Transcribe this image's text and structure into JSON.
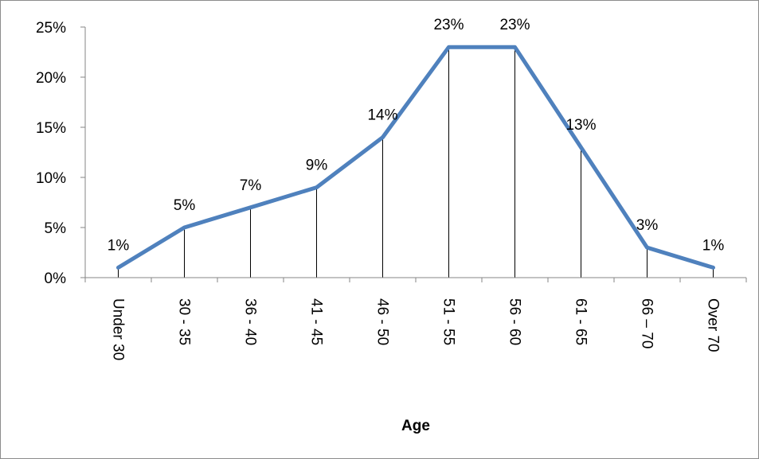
{
  "chart_data": {
    "type": "line",
    "title": "",
    "xlabel": "Age",
    "ylabel": "",
    "ylim": [
      0,
      25
    ],
    "y_tick_values": [
      0,
      5,
      10,
      15,
      20,
      25
    ],
    "y_tick_labels": [
      "0%",
      "5%",
      "10%",
      "15%",
      "20%",
      "25%"
    ],
    "categories": [
      "Under 30",
      "30 - 35",
      "36 - 40",
      "41 - 45",
      "46 - 50",
      "51 - 55",
      "56 - 60",
      "61 - 65",
      "66 – 70",
      "Over 70"
    ],
    "values": [
      1,
      5,
      7,
      9,
      14,
      23,
      23,
      13,
      3,
      1
    ],
    "data_labels": [
      "1%",
      "5%",
      "7%",
      "9%",
      "14%",
      "23%",
      "23%",
      "13%",
      "3%",
      "1%"
    ],
    "drop_lines": true,
    "grid": false,
    "legend": "none",
    "colors": {
      "series": "#4f81bd",
      "axis": "#868686",
      "drop_line": "#000000"
    }
  }
}
